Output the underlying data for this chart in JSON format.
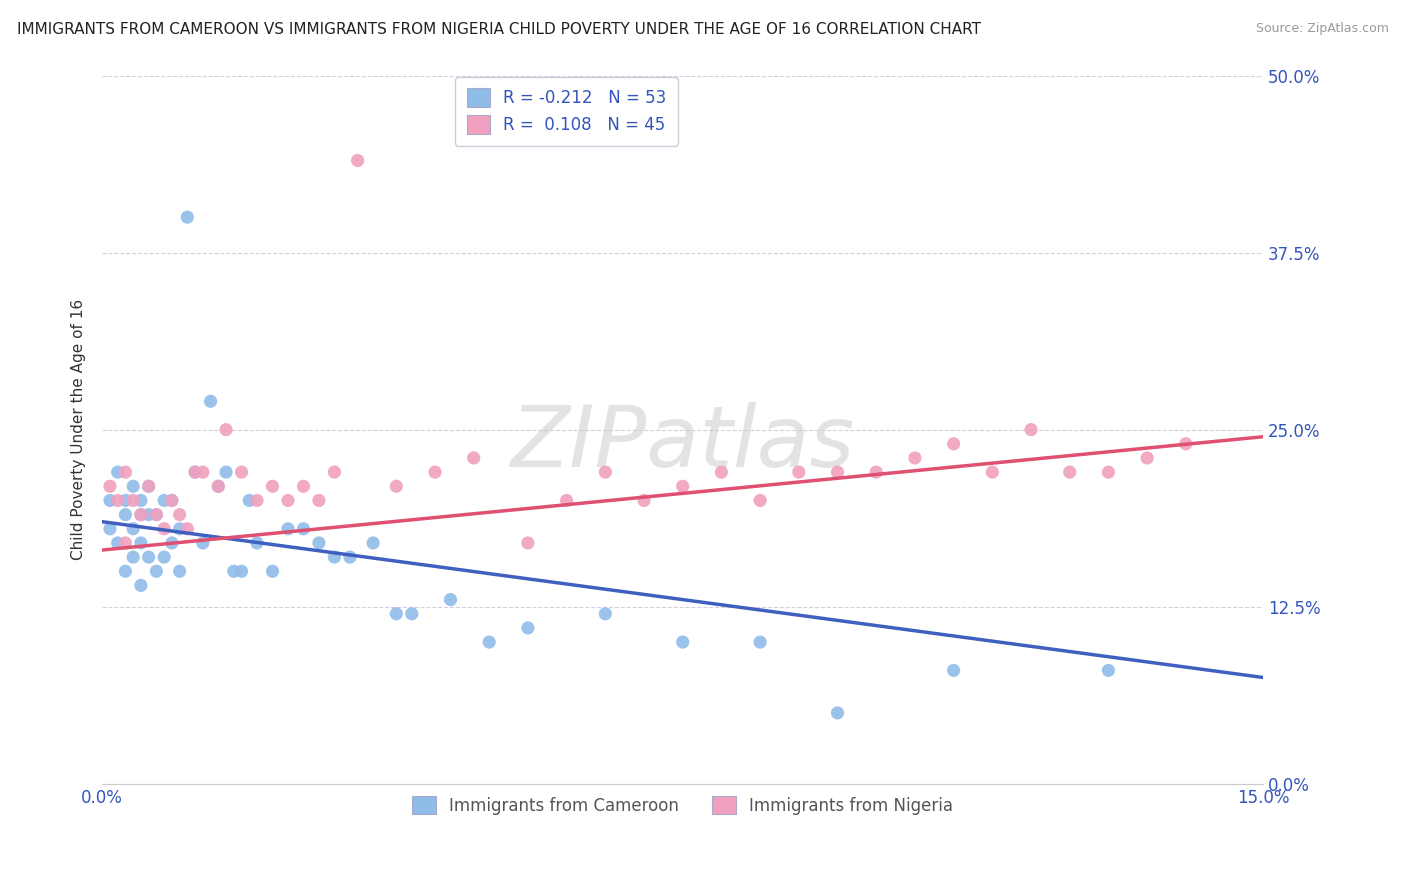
{
  "title": "IMMIGRANTS FROM CAMEROON VS IMMIGRANTS FROM NIGERIA CHILD POVERTY UNDER THE AGE OF 16 CORRELATION CHART",
  "source": "Source: ZipAtlas.com",
  "xmin": 0.0,
  "xmax": 0.15,
  "ymin": 0.0,
  "ymax": 0.5,
  "yticks": [
    0.0,
    0.125,
    0.25,
    0.375,
    0.5
  ],
  "ytick_labels": [
    "0.0%",
    "12.5%",
    "25.0%",
    "37.5%",
    "50.0%"
  ],
  "xtick_labels": [
    "0.0%",
    "15.0%"
  ],
  "watermark_text": "ZIPatlas",
  "cameroon_color": "#90bce8",
  "nigeria_color": "#f0a0be",
  "cameroon_trend_color": "#4060c0",
  "nigeria_trend_color": "#e05070",
  "background_color": "#ffffff",
  "grid_color": "#d0d0e0",
  "title_fontsize": 11,
  "source_fontsize": 9,
  "axis_label": "Child Poverty Under the Age of 16",
  "legend_label_cameroon": "Immigrants from Cameroon",
  "legend_label_nigeria": "Immigrants from Nigeria",
  "legend_R_cameroon": "R = -0.212",
  "legend_N_cameroon": "N = 53",
  "legend_R_nigeria": "R =  0.108",
  "legend_N_nigeria": "N = 45",
  "cam_trend_x0": 0.0,
  "cam_trend_y0": 0.185,
  "cam_trend_x1": 0.15,
  "cam_trend_y1": 0.075,
  "nig_trend_x0": 0.0,
  "nig_trend_y0": 0.165,
  "nig_trend_x1": 0.15,
  "nig_trend_y1": 0.245,
  "cameroon_x": [
    0.001,
    0.001,
    0.002,
    0.002,
    0.003,
    0.003,
    0.003,
    0.004,
    0.004,
    0.004,
    0.005,
    0.005,
    0.005,
    0.005,
    0.006,
    0.006,
    0.006,
    0.007,
    0.007,
    0.008,
    0.008,
    0.009,
    0.009,
    0.01,
    0.01,
    0.011,
    0.012,
    0.013,
    0.014,
    0.015,
    0.016,
    0.017,
    0.018,
    0.019,
    0.02,
    0.022,
    0.024,
    0.026,
    0.028,
    0.03,
    0.032,
    0.035,
    0.038,
    0.04,
    0.045,
    0.05,
    0.055,
    0.065,
    0.075,
    0.085,
    0.095,
    0.11,
    0.13
  ],
  "cameroon_y": [
    0.2,
    0.18,
    0.22,
    0.17,
    0.2,
    0.19,
    0.15,
    0.21,
    0.18,
    0.16,
    0.2,
    0.19,
    0.17,
    0.14,
    0.21,
    0.19,
    0.16,
    0.19,
    0.15,
    0.2,
    0.16,
    0.2,
    0.17,
    0.18,
    0.15,
    0.4,
    0.22,
    0.17,
    0.27,
    0.21,
    0.22,
    0.15,
    0.15,
    0.2,
    0.17,
    0.15,
    0.18,
    0.18,
    0.17,
    0.16,
    0.16,
    0.17,
    0.12,
    0.12,
    0.13,
    0.1,
    0.11,
    0.12,
    0.1,
    0.1,
    0.05,
    0.08,
    0.08
  ],
  "nigeria_x": [
    0.001,
    0.002,
    0.003,
    0.003,
    0.004,
    0.005,
    0.006,
    0.007,
    0.008,
    0.009,
    0.01,
    0.011,
    0.012,
    0.013,
    0.015,
    0.016,
    0.018,
    0.02,
    0.022,
    0.024,
    0.026,
    0.028,
    0.03,
    0.033,
    0.038,
    0.043,
    0.048,
    0.055,
    0.06,
    0.065,
    0.07,
    0.075,
    0.08,
    0.085,
    0.09,
    0.095,
    0.1,
    0.105,
    0.11,
    0.115,
    0.12,
    0.125,
    0.13,
    0.135,
    0.14
  ],
  "nigeria_y": [
    0.21,
    0.2,
    0.22,
    0.17,
    0.2,
    0.19,
    0.21,
    0.19,
    0.18,
    0.2,
    0.19,
    0.18,
    0.22,
    0.22,
    0.21,
    0.25,
    0.22,
    0.2,
    0.21,
    0.2,
    0.21,
    0.2,
    0.22,
    0.44,
    0.21,
    0.22,
    0.23,
    0.17,
    0.2,
    0.22,
    0.2,
    0.21,
    0.22,
    0.2,
    0.22,
    0.22,
    0.22,
    0.23,
    0.24,
    0.22,
    0.25,
    0.22,
    0.22,
    0.23,
    0.24
  ]
}
